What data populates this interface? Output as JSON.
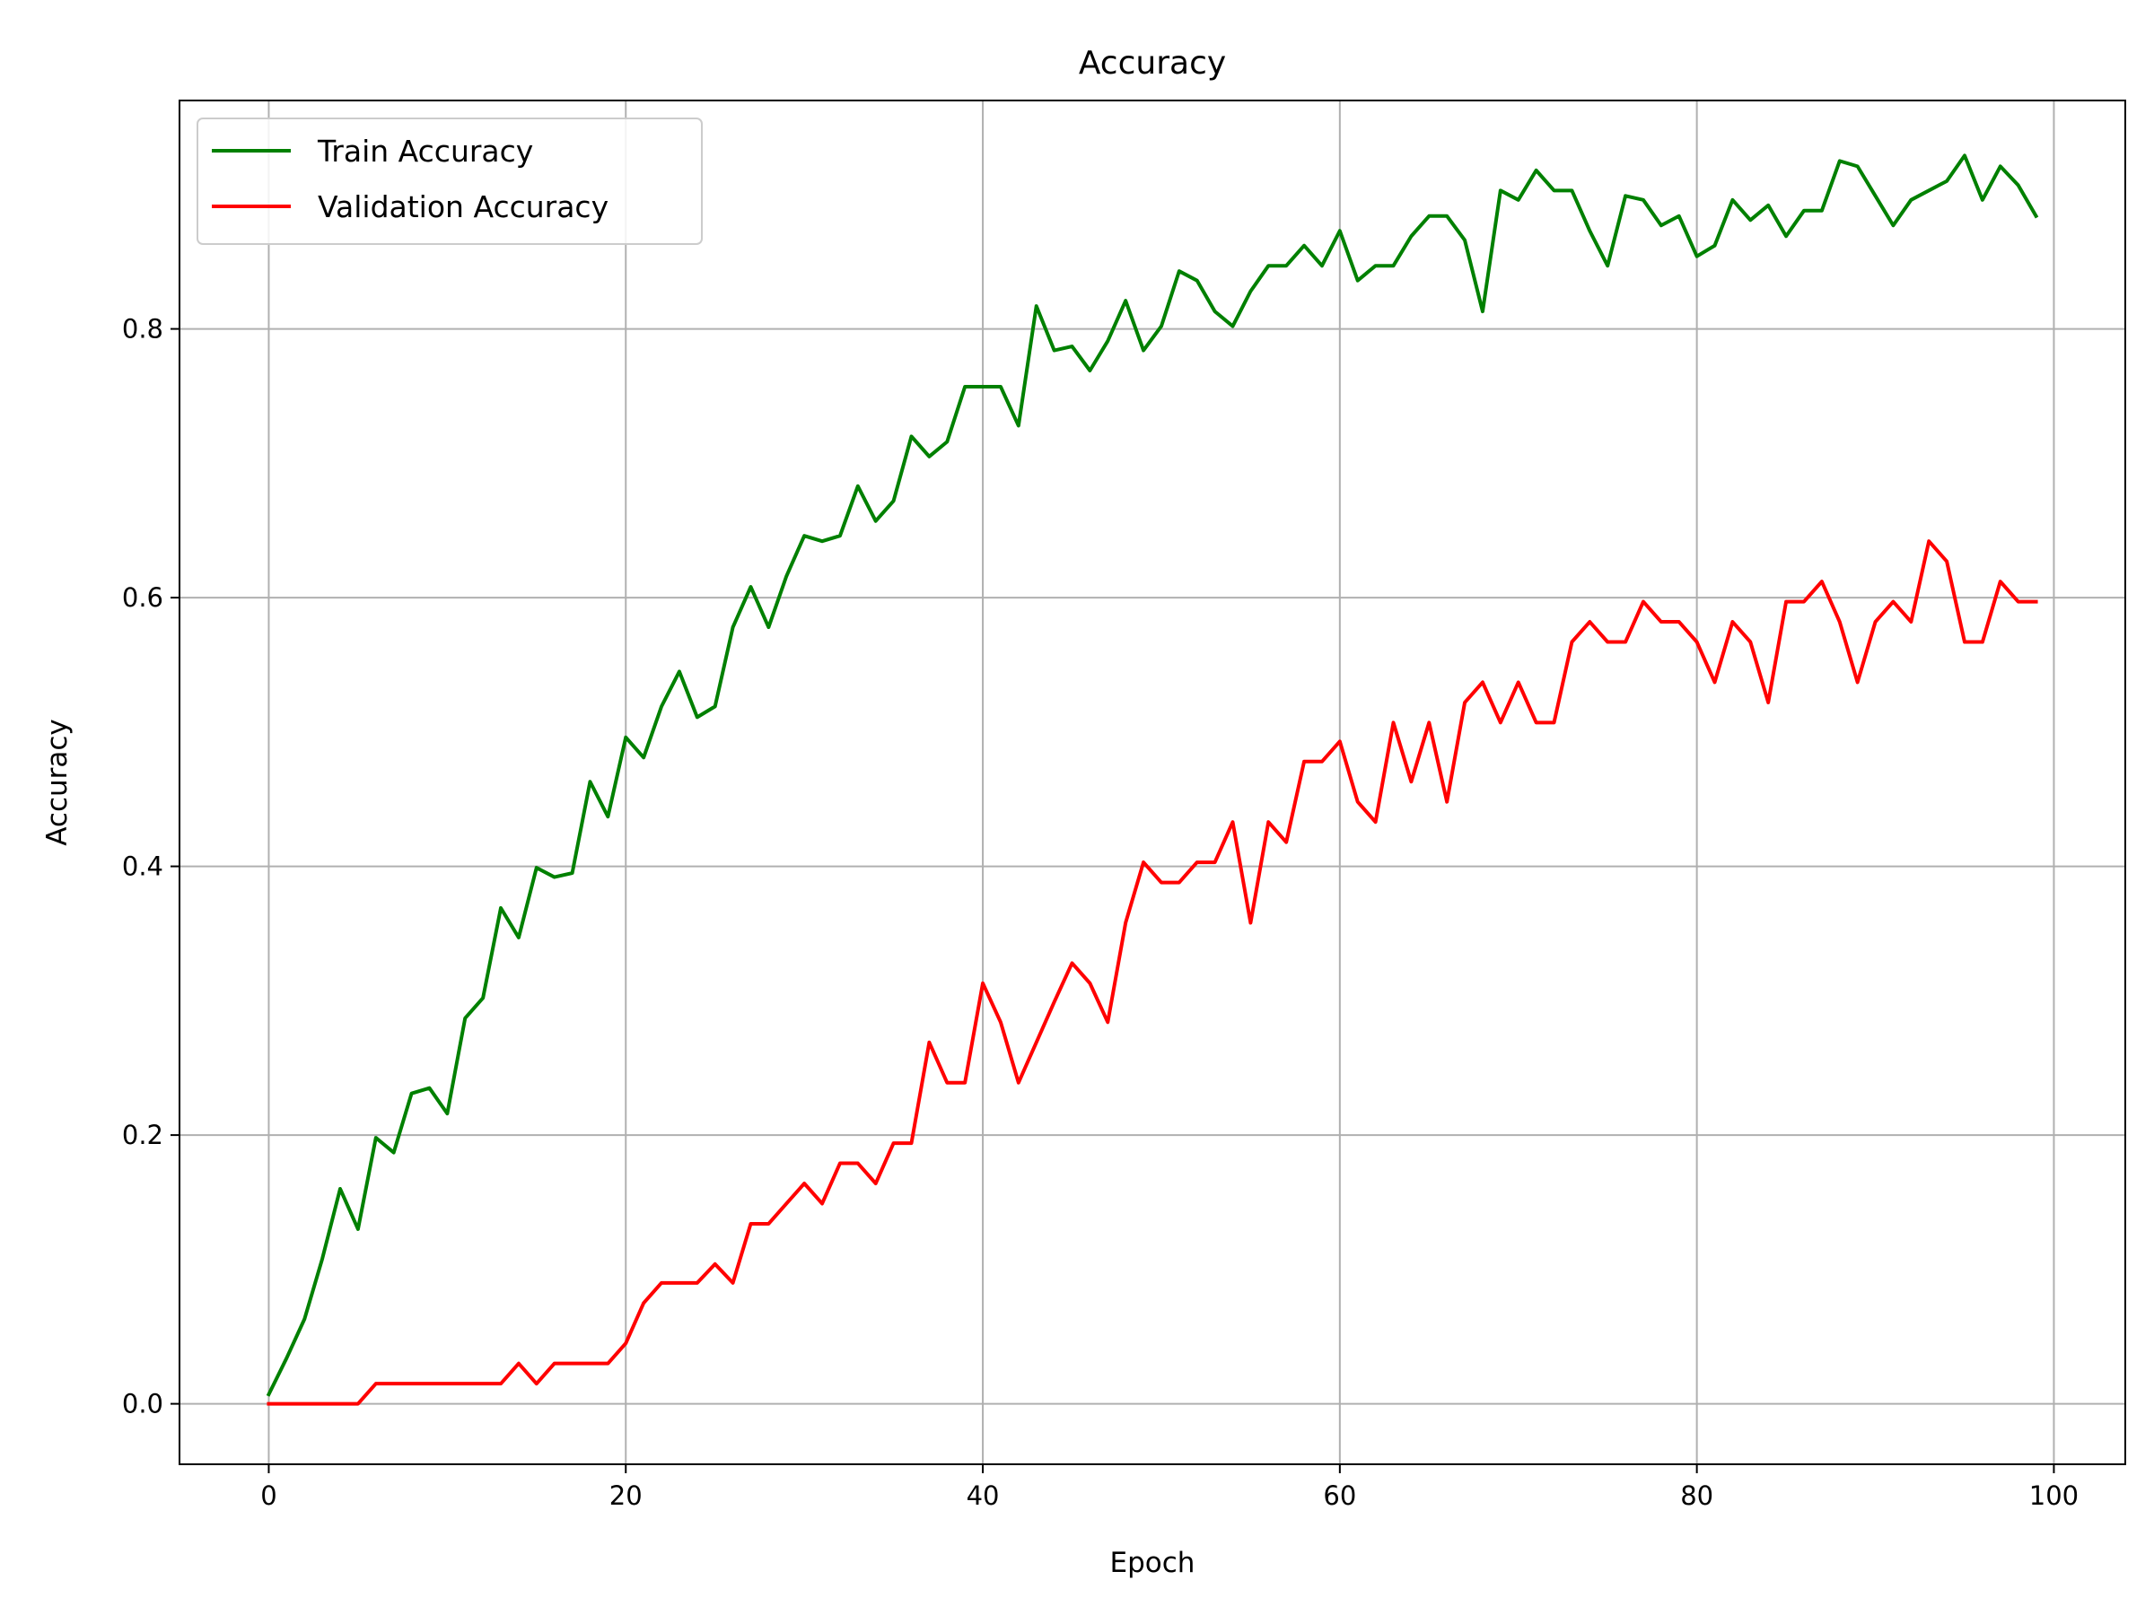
{
  "chart_data": {
    "type": "line",
    "title": "Accuracy",
    "xlabel": "Epoch",
    "ylabel": "Accuracy",
    "xlim": [
      -5,
      104
    ],
    "ylim": [
      -0.045,
      0.97
    ],
    "xticks": [
      0,
      20,
      40,
      60,
      80,
      100
    ],
    "yticks": [
      0.0,
      0.2,
      0.4,
      0.6,
      0.8
    ],
    "ytick_labels": [
      "0.0",
      "0.2",
      "0.4",
      "0.6",
      "0.8"
    ],
    "grid": true,
    "legend": {
      "placement": "upper left"
    },
    "x": [
      0,
      1,
      2,
      3,
      4,
      5,
      6,
      7,
      8,
      9,
      10,
      11,
      12,
      13,
      14,
      15,
      16,
      17,
      18,
      19,
      20,
      21,
      22,
      23,
      24,
      25,
      26,
      27,
      28,
      29,
      30,
      31,
      32,
      33,
      34,
      35,
      36,
      37,
      38,
      39,
      40,
      41,
      42,
      43,
      44,
      45,
      46,
      47,
      48,
      49,
      50,
      51,
      52,
      53,
      54,
      55,
      56,
      57,
      58,
      59,
      60,
      61,
      62,
      63,
      64,
      65,
      66,
      67,
      68,
      69,
      70,
      71,
      72,
      73,
      74,
      75,
      76,
      77,
      78,
      79,
      80,
      81,
      82,
      83,
      84,
      85,
      86,
      87,
      88,
      89,
      90,
      91,
      92,
      93,
      94,
      95,
      96,
      97,
      98,
      99
    ],
    "series": [
      {
        "name": "Train Accuracy",
        "color": "#008000",
        "values": [
          0.007,
          0.034,
          0.063,
          0.108,
          0.16,
          0.13,
          0.198,
          0.187,
          0.231,
          0.235,
          0.216,
          0.287,
          0.302,
          0.369,
          0.347,
          0.399,
          0.392,
          0.395,
          0.463,
          0.437,
          0.496,
          0.481,
          0.519,
          0.545,
          0.511,
          0.519,
          0.578,
          0.608,
          0.578,
          0.616,
          0.646,
          0.642,
          0.646,
          0.683,
          0.657,
          0.672,
          0.72,
          0.705,
          0.716,
          0.757,
          0.757,
          0.757,
          0.728,
          0.817,
          0.784,
          0.787,
          0.769,
          0.791,
          0.821,
          0.784,
          0.802,
          0.843,
          0.836,
          0.813,
          0.802,
          0.828,
          0.847,
          0.847,
          0.862,
          0.847,
          0.873,
          0.836,
          0.847,
          0.847,
          0.869,
          0.884,
          0.884,
          0.866,
          0.813,
          0.903,
          0.896,
          0.918,
          0.903,
          0.903,
          0.873,
          0.847,
          0.899,
          0.896,
          0.877,
          0.884,
          0.854,
          0.862,
          0.896,
          0.881,
          0.892,
          0.869,
          0.888,
          0.888,
          0.925,
          0.921,
          0.899,
          0.877,
          0.896,
          0.903,
          0.91,
          0.929,
          0.896,
          0.921,
          0.907,
          0.884
        ]
      },
      {
        "name": "Validation Accuracy",
        "color": "#ff0000",
        "values": [
          0.0,
          0.0,
          0.0,
          0.0,
          0.0,
          0.0,
          0.015,
          0.015,
          0.015,
          0.015,
          0.015,
          0.015,
          0.015,
          0.015,
          0.03,
          0.015,
          0.03,
          0.03,
          0.03,
          0.03,
          0.045,
          0.075,
          0.09,
          0.09,
          0.09,
          0.104,
          0.09,
          0.134,
          0.134,
          0.149,
          0.164,
          0.149,
          0.179,
          0.179,
          0.164,
          0.194,
          0.194,
          0.269,
          0.239,
          0.239,
          0.313,
          0.284,
          0.239,
          0.269,
          0.299,
          0.328,
          0.313,
          0.284,
          0.358,
          0.403,
          0.388,
          0.388,
          0.403,
          0.403,
          0.433,
          0.358,
          0.433,
          0.418,
          0.478,
          0.478,
          0.493,
          0.448,
          0.433,
          0.507,
          0.463,
          0.507,
          0.448,
          0.522,
          0.537,
          0.507,
          0.537,
          0.507,
          0.507,
          0.567,
          0.582,
          0.567,
          0.567,
          0.597,
          0.582,
          0.582,
          0.567,
          0.537,
          0.582,
          0.567,
          0.522,
          0.597,
          0.597,
          0.612,
          0.582,
          0.537,
          0.582,
          0.597,
          0.582,
          0.642,
          0.627,
          0.567,
          0.567,
          0.612,
          0.597,
          0.597
        ]
      }
    ]
  }
}
